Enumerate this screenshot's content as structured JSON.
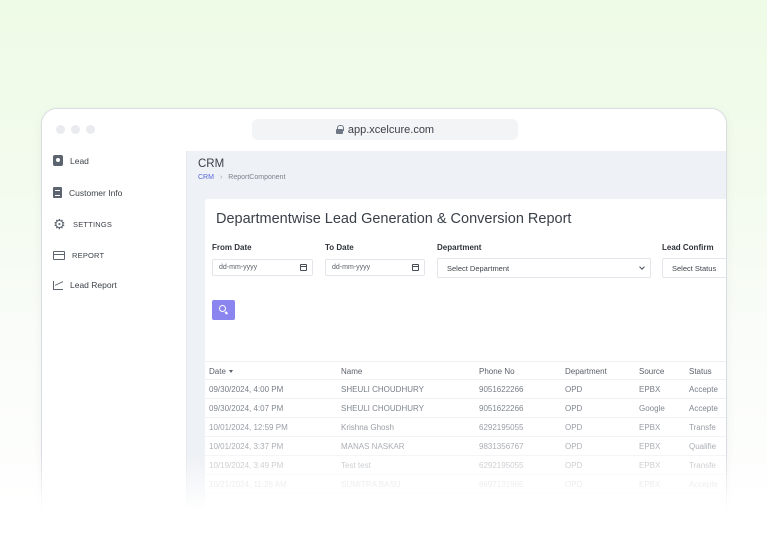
{
  "browser": {
    "url": "app.xcelcure.com"
  },
  "sidebar": {
    "items": [
      {
        "label": "Lead",
        "icon": "user-badge-icon"
      },
      {
        "label": "Customer Info",
        "icon": "document-icon"
      },
      {
        "label": "SETTINGS",
        "icon": "gear-icon"
      },
      {
        "label": "REPORT",
        "icon": "report-icon"
      },
      {
        "label": "Lead Report",
        "icon": "line-chart-icon"
      }
    ]
  },
  "header": {
    "title": "CRM",
    "breadcrumb": [
      "CRM",
      "ReportComponent"
    ]
  },
  "report": {
    "title": "Departmentwise Lead Generation & Conversion Report",
    "filters": {
      "from_date": {
        "label": "From Date",
        "placeholder": "dd-mm-yyyy"
      },
      "to_date": {
        "label": "To Date",
        "placeholder": "dd-mm-yyyy"
      },
      "department": {
        "label": "Department",
        "value": "Select Department"
      },
      "lead_confirmation": {
        "label": "Lead Confirm",
        "value": "Select Status"
      }
    },
    "search_button": {
      "icon": "search-icon"
    }
  },
  "table": {
    "columns": [
      "Date",
      "Name",
      "Phone No",
      "Department",
      "Source",
      "Status"
    ],
    "rows": [
      [
        "09/30/2024, 4:00 PM",
        "SHEULI CHOUDHURY",
        "9051622266",
        "OPD",
        "EPBX",
        "Accepte"
      ],
      [
        "09/30/2024, 4:07 PM",
        "SHEULI CHOUDHURY",
        "9051622266",
        "OPD",
        "Google",
        "Accepte"
      ],
      [
        "10/01/2024, 12:59 PM",
        "Krishna Ghosh",
        "6292195055",
        "OPD",
        "EPBX",
        "Transfe"
      ],
      [
        "10/01/2024, 3:37 PM",
        "MANAS NASKAR",
        "9831356767",
        "OPD",
        "EPBX",
        "Qualifie"
      ],
      [
        "10/19/2024, 3:49 PM",
        "Test test",
        "6292195055",
        "OPD",
        "EPBX",
        "Transfe"
      ],
      [
        "10/21/2024, 11:26 AM",
        "SUMITRA BASU",
        "8697131965",
        "OPD",
        "EPBX",
        "Accepte"
      ]
    ]
  },
  "colors": {
    "accent": "#8b85f0",
    "breadcrumb_link": "#5a67d8",
    "content_bg": "#eef1f5"
  }
}
